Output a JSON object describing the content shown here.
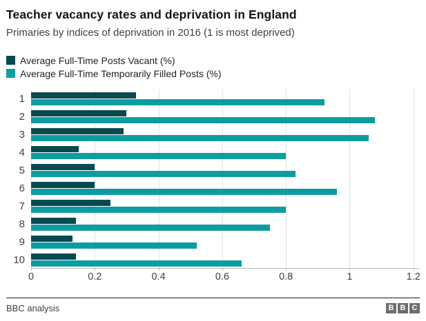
{
  "header": {
    "title": "Teacher vacancy rates and deprivation in England",
    "subtitle": "Primaries by indices of deprivation in 2016 (1 is most deprived)"
  },
  "legend": [
    {
      "label": "Average Full-Time Posts Vacant (%)",
      "color": "#074a50"
    },
    {
      "label": "Average Full-Time Temporarily Filled Posts (%)",
      "color": "#0d9da0"
    }
  ],
  "chart_data": {
    "type": "bar",
    "orientation": "horizontal",
    "title": "Teacher vacancy rates and deprivation in England",
    "subtitle": "Primaries by indices of deprivation in 2016 (1 is most deprived)",
    "categories": [
      "1",
      "2",
      "3",
      "4",
      "5",
      "6",
      "7",
      "8",
      "9",
      "10"
    ],
    "series": [
      {
        "name": "Average Full-Time Posts Vacant (%)",
        "color": "#074a50",
        "values": [
          0.33,
          0.3,
          0.29,
          0.15,
          0.2,
          0.2,
          0.25,
          0.14,
          0.13,
          0.14
        ]
      },
      {
        "name": "Average Full-Time Temporarily Filled Posts (%)",
        "color": "#0d9da0",
        "values": [
          0.92,
          1.08,
          1.06,
          0.8,
          0.83,
          0.96,
          0.8,
          0.75,
          0.52,
          0.66
        ]
      }
    ],
    "xlim": [
      0,
      1.22
    ],
    "x_ticks": [
      0,
      0.2,
      0.4,
      0.6,
      0.8,
      1,
      1.2
    ],
    "x_tick_labels": [
      "0",
      "0.2",
      "0.4",
      "0.6",
      "0.8",
      "1",
      "1.2"
    ],
    "grid": true,
    "gridline_color": "#e2e2e2",
    "legend_position": "top"
  },
  "footer": {
    "source": "BBC analysis",
    "logo_letters": [
      "B",
      "B",
      "C"
    ]
  }
}
